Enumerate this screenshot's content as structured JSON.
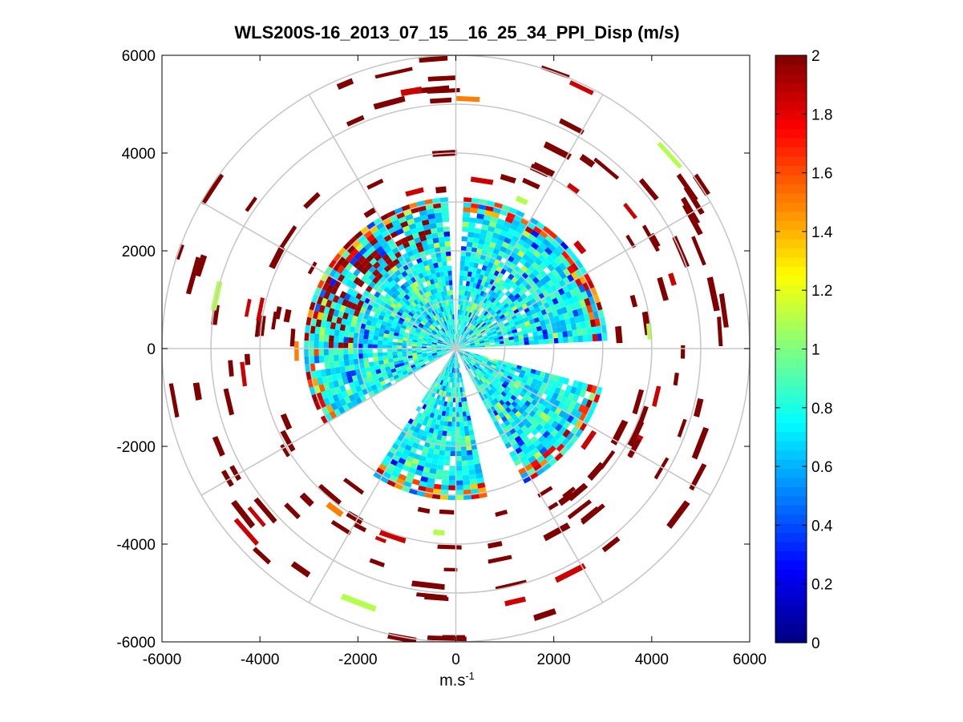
{
  "chart_data": {
    "type": "heatmap",
    "subtype": "polar-ppi",
    "title": "WLS200S-16_2013_07_15__16_25_34_PPI_Disp (m/s)",
    "xlabel_base": "m.s",
    "xlabel_exponent": "-1",
    "ylabel": "",
    "xlim": [
      -6000,
      6000
    ],
    "ylim": [
      -6000,
      6000
    ],
    "x_ticks": [
      "-6000",
      "-4000",
      "-2000",
      "0",
      "2000",
      "4000",
      "6000"
    ],
    "y_ticks": [
      "6000",
      "4000",
      "2000",
      "0",
      "-2000",
      "-4000",
      "-6000"
    ],
    "range_rings": [
      1000,
      2000,
      3000,
      4000,
      5000,
      6000
    ],
    "spoke_angles_deg": [
      0,
      30,
      60,
      90,
      120,
      150,
      180,
      210,
      240,
      270,
      300,
      330
    ],
    "grid": true,
    "colorbar": {
      "min": 0,
      "max": 2,
      "ticks": [
        "2",
        "1.8",
        "1.6",
        "1.4",
        "1.2",
        "1",
        "0.8",
        "0.6",
        "0.4",
        "0.2",
        "0"
      ],
      "colormap": "jet",
      "location": "right"
    },
    "dense_region": {
      "max_range": 3100,
      "dominant_value": 0.75,
      "gap_sectors_deg": [
        [
          87,
          92
        ],
        [
          -14,
          4
        ],
        [
          -62,
          -78
        ],
        [
          -122,
          -150
        ]
      ]
    },
    "sparse_returns": {
      "min_range": 3200,
      "max_range": 6000,
      "dominant_value": 2.0
    }
  }
}
